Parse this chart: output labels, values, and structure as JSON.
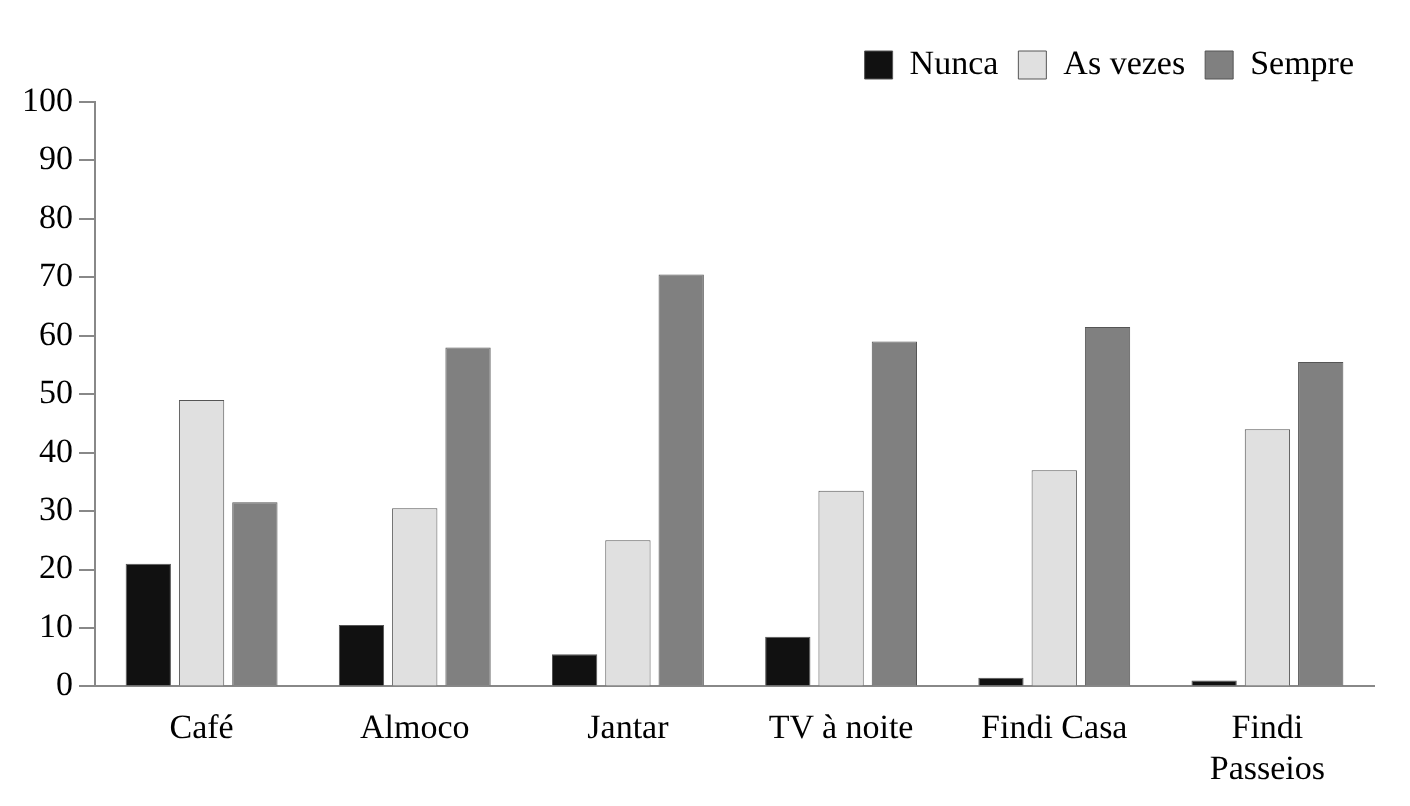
{
  "chart_data": {
    "type": "bar",
    "categories": [
      "Café",
      "Almoco",
      "Jantar",
      "TV à noite",
      "Findi Casa",
      "Findi Passeios"
    ],
    "series": [
      {
        "name": "Nunca",
        "color": "#111111",
        "values": [
          21,
          10.5,
          5.5,
          8.5,
          1.5,
          1
        ]
      },
      {
        "name": "As vezes",
        "color": "#e0e0e0",
        "values": [
          49,
          30.5,
          25,
          33.5,
          37,
          44
        ]
      },
      {
        "name": "Sempre",
        "color": "#808080",
        "values": [
          31.5,
          58,
          70.5,
          59,
          61.5,
          55.5
        ]
      }
    ],
    "ylim": [
      0,
      100
    ],
    "yticks": [
      0,
      10,
      20,
      30,
      40,
      50,
      60,
      70,
      80,
      90,
      100
    ],
    "grid": false,
    "legend": "top right"
  }
}
